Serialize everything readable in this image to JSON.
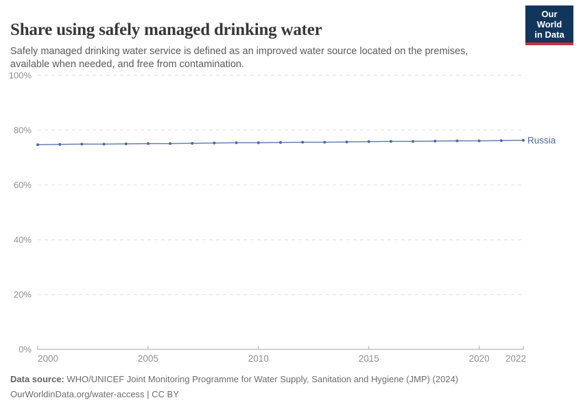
{
  "header": {
    "title": "Share using safely managed drinking water",
    "subtitle": "Safely managed drinking water service is defined as an improved water source located on the premises, available when needed, and free from contamination.",
    "logo": {
      "line1": "Our World",
      "line2": "in Data"
    }
  },
  "chart_data": {
    "type": "line",
    "title": "Share using safely managed drinking water",
    "xlabel": "",
    "ylabel": "",
    "xlim": [
      2000,
      2022
    ],
    "ylim": [
      0,
      100
    ],
    "x_ticks": [
      2000,
      2005,
      2010,
      2015,
      2020,
      2022
    ],
    "y_ticks": [
      "0%",
      "20%",
      "40%",
      "60%",
      "80%",
      "100%"
    ],
    "grid": "horizontal-dashed",
    "legend_position": "end-of-line-label",
    "series": [
      {
        "name": "Russia",
        "color": "#4c6a9c",
        "x": [
          2000,
          2001,
          2002,
          2003,
          2004,
          2005,
          2006,
          2007,
          2008,
          2009,
          2010,
          2011,
          2012,
          2013,
          2014,
          2015,
          2016,
          2017,
          2018,
          2019,
          2020,
          2021,
          2022
        ],
        "values": [
          74.7,
          74.8,
          74.9,
          74.9,
          75.0,
          75.1,
          75.1,
          75.2,
          75.3,
          75.4,
          75.4,
          75.5,
          75.6,
          75.6,
          75.7,
          75.8,
          75.9,
          75.9,
          76.0,
          76.1,
          76.1,
          76.2,
          76.3
        ]
      }
    ]
  },
  "footer": {
    "datasource_label": "Data source:",
    "datasource_text": " WHO/UNICEF Joint Monitoring Programme for Water Supply, Sanitation and Hygiene (JMP) (2024)",
    "license": "OurWorldinData.org/water-access | CC BY"
  },
  "colors": {
    "accent_line": "#4c6a9c",
    "grid": "#dcdcdc",
    "axis": "#a5a5a5",
    "tick_text": "#8f8f8f",
    "logo_bg": "#12355c",
    "logo_red": "#c5303e"
  }
}
